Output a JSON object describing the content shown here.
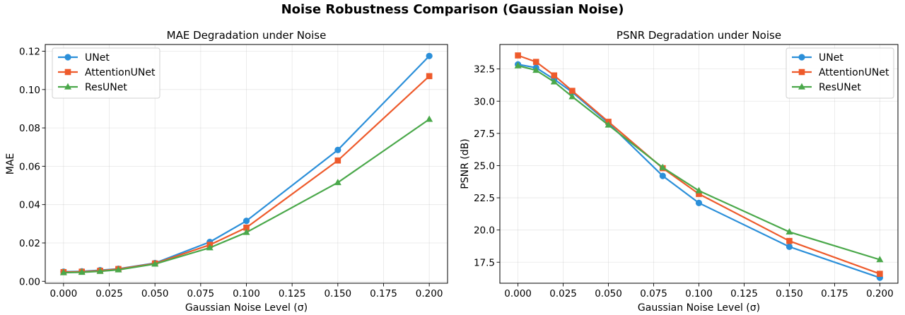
{
  "suptitle": "Noise Robustness Comparison (Gaussian Noise)",
  "colors": {
    "UNet": "#2b8fd9",
    "AttentionUNet": "#ee5a2b",
    "ResUNet": "#4aa84a"
  },
  "chart_data": [
    {
      "type": "line",
      "title": "MAE Degradation under Noise",
      "xlabel": "Gaussian Noise Level (σ)",
      "ylabel": "MAE",
      "x": [
        0.0,
        0.01,
        0.02,
        0.03,
        0.05,
        0.08,
        0.1,
        0.15,
        0.2
      ],
      "xlim": [
        -0.01,
        0.21
      ],
      "ylim": [
        -0.001,
        0.1235
      ],
      "xticks": [
        "0.000",
        "0.025",
        "0.050",
        "0.075",
        "0.100",
        "0.125",
        "0.150",
        "0.175",
        "0.200"
      ],
      "yticks": [
        "0.00",
        "0.02",
        "0.04",
        "0.06",
        "0.08",
        "0.10",
        "0.12"
      ],
      "grid": true,
      "legend": "upper left",
      "series": [
        {
          "name": "UNet",
          "marker": "circle",
          "values": [
            0.005,
            0.0052,
            0.0058,
            0.0065,
            0.0095,
            0.0205,
            0.0315,
            0.0685,
            0.1175
          ]
        },
        {
          "name": "AttentionUNet",
          "marker": "square",
          "values": [
            0.0048,
            0.005,
            0.0055,
            0.0064,
            0.0093,
            0.019,
            0.028,
            0.063,
            0.107
          ]
        },
        {
          "name": "ResUNet",
          "marker": "triangle",
          "values": [
            0.0045,
            0.0047,
            0.0052,
            0.006,
            0.009,
            0.0175,
            0.0255,
            0.0515,
            0.0845
          ]
        }
      ]
    },
    {
      "type": "line",
      "title": "PSNR Degradation under Noise",
      "xlabel": "Gaussian Noise Level (σ)",
      "ylabel": "PSNR (dB)",
      "x": [
        0.0,
        0.01,
        0.02,
        0.03,
        0.05,
        0.08,
        0.1,
        0.15,
        0.2
      ],
      "xlim": [
        -0.01,
        0.21
      ],
      "ylim": [
        15.87,
        34.4
      ],
      "xticks": [
        "0.000",
        "0.025",
        "0.050",
        "0.075",
        "0.100",
        "0.125",
        "0.150",
        "0.175",
        "0.200"
      ],
      "yticks": [
        "17.5",
        "20.0",
        "22.5",
        "25.0",
        "27.5",
        "30.0",
        "32.5"
      ],
      "grid": true,
      "legend": "upper right",
      "series": [
        {
          "name": "UNet",
          "marker": "circle",
          "values": [
            32.85,
            32.6,
            31.7,
            30.7,
            28.3,
            24.2,
            22.1,
            18.7,
            16.3
          ]
        },
        {
          "name": "AttentionUNet",
          "marker": "square",
          "values": [
            33.55,
            33.05,
            32.0,
            30.8,
            28.4,
            24.8,
            22.8,
            19.15,
            16.6
          ]
        },
        {
          "name": "ResUNet",
          "marker": "triangle",
          "values": [
            32.75,
            32.4,
            31.5,
            30.35,
            28.15,
            24.85,
            23.05,
            19.85,
            17.7
          ]
        }
      ]
    }
  ]
}
